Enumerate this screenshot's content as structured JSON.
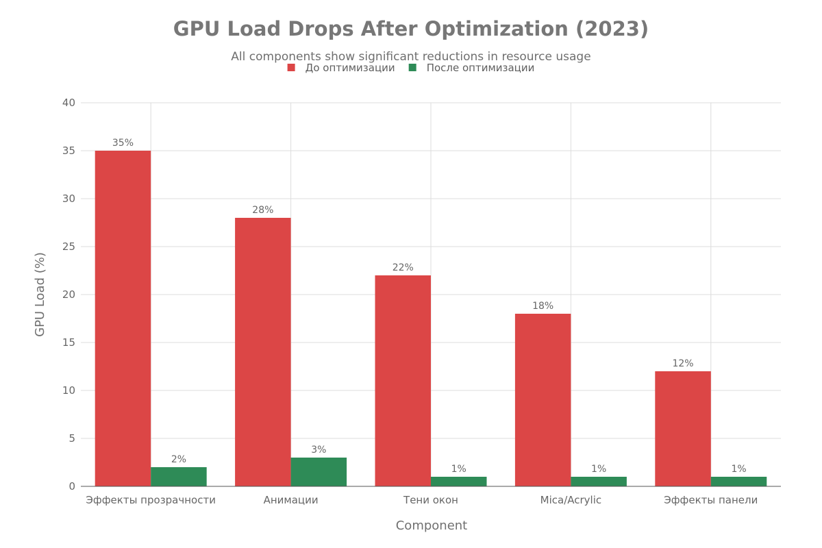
{
  "chart_data": {
    "type": "bar",
    "title": "GPU Load Drops After Optimization (2023)",
    "subtitle": "All components show significant reductions in resource usage",
    "xlabel": "Component",
    "ylabel": "GPU Load (%)",
    "ylim": [
      0,
      40
    ],
    "yticks": [
      0,
      5,
      10,
      15,
      20,
      25,
      30,
      35,
      40
    ],
    "grid": true,
    "legend_position": "top-center",
    "categories": [
      "Эффекты прозрачности",
      "Анимации",
      "Тени окон",
      "Mica/Acrylic",
      "Эффекты панели"
    ],
    "series": [
      {
        "name": "До оптимизации",
        "color": "#dc4646",
        "values": [
          35,
          28,
          22,
          18,
          12
        ],
        "labels": [
          "35%",
          "28%",
          "22%",
          "18%",
          "12%"
        ]
      },
      {
        "name": "После оптимизации",
        "color": "#2e8b57",
        "values": [
          2,
          3,
          1,
          1,
          1
        ],
        "labels": [
          "2%",
          "3%",
          "1%",
          "1%",
          "1%"
        ]
      }
    ]
  }
}
